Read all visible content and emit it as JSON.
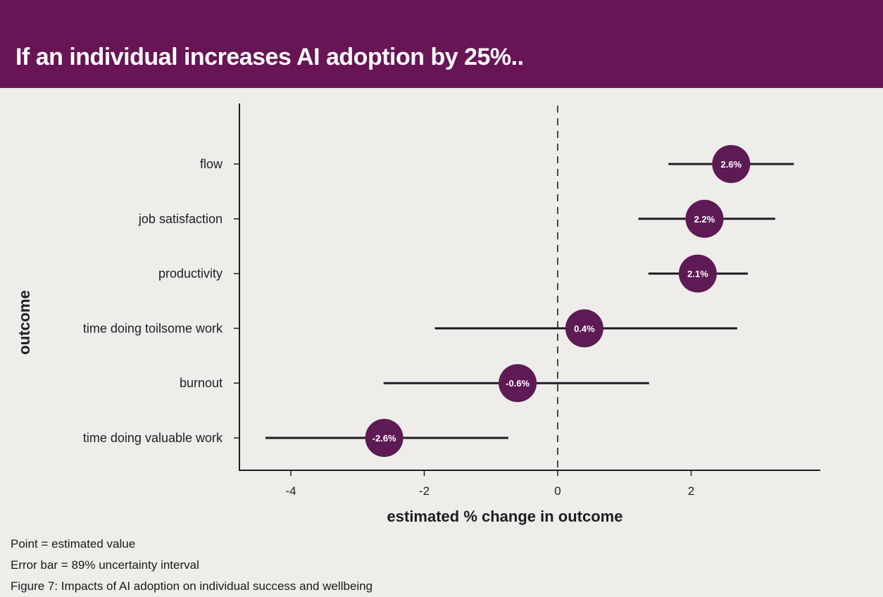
{
  "header": {
    "title": "If an individual increases AI adoption by 25%.."
  },
  "chart_data": {
    "type": "scatter",
    "subtype": "point-range (forest plot)",
    "title": "If an individual increases AI adoption by 25%..",
    "xlabel": "estimated % change in outcome",
    "ylabel": "outcome",
    "xlim": [
      -4.8,
      3.9
    ],
    "xticks": [
      -4,
      -2,
      0,
      2
    ],
    "xtick_labels": [
      "-4",
      "-2",
      "0",
      "2"
    ],
    "reference_line": {
      "x": 0,
      "style": "dashed"
    },
    "grid": false,
    "point_color": "#5e1a54",
    "categories": [
      "flow",
      "job satisfaction",
      "productivity",
      "time doing toilsome work",
      "burnout",
      "time doing valuable work"
    ],
    "series": [
      {
        "name": "estimate",
        "values": [
          2.6,
          2.2,
          2.1,
          0.4,
          -0.6,
          -2.6
        ],
        "labels": [
          "2.6%",
          "2.2%",
          "2.1%",
          "0.4%",
          "-0.6%",
          "-2.6%"
        ],
        "lower": [
          1.66,
          1.21,
          1.36,
          -1.84,
          -2.61,
          -4.38
        ],
        "upper": [
          3.54,
          3.26,
          2.85,
          2.69,
          1.37,
          -0.74
        ]
      }
    ]
  },
  "notes": [
    "Point = estimated value",
    "Error bar = 89% uncertainty interval",
    "Figure 7: Impacts of AI adoption on individual success and wellbeing"
  ]
}
